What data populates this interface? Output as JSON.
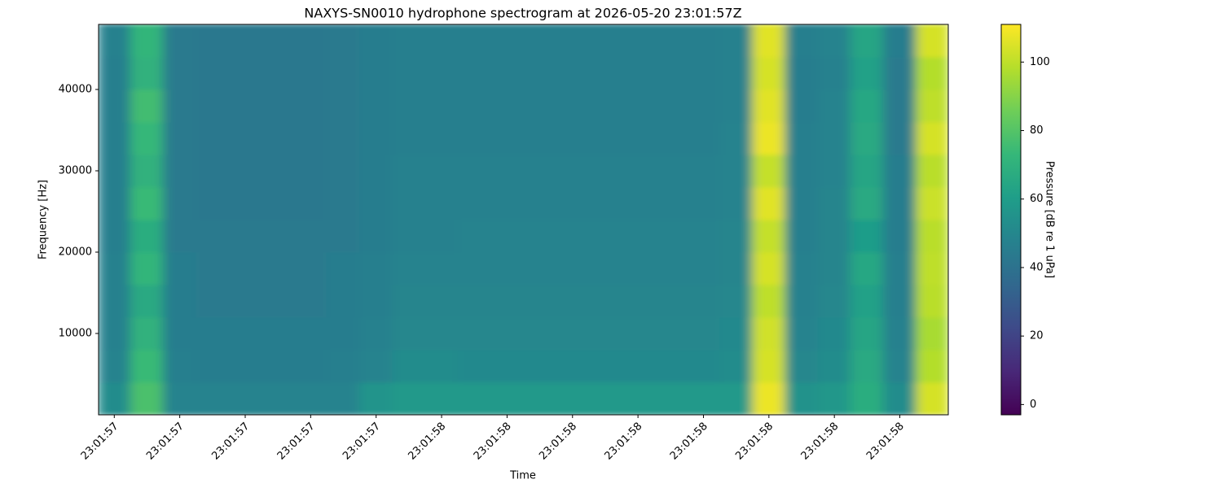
{
  "chart_data": {
    "type": "heatmap",
    "title": "NAXYS-SN0010 hydrophone spectrogram at 2026-05-20 23:01:57Z",
    "xlabel": "Time",
    "ylabel": "Frequency [Hz]",
    "colormap": "viridis",
    "x": [
      57.5,
      57.55,
      57.6,
      57.65,
      57.7,
      57.75,
      57.8,
      57.85,
      57.9,
      57.95,
      58.0,
      58.05,
      58.1,
      58.15,
      58.2,
      58.25,
      58.3,
      58.35,
      58.4,
      58.45,
      58.5,
      58.55,
      58.6,
      58.65,
      58.7,
      58.75
    ],
    "y": [
      2000,
      6000,
      10000,
      14000,
      18000,
      22000,
      26000,
      30000,
      34000,
      38000,
      42000,
      46000
    ],
    "z": [
      [
        52,
        78,
        48,
        48,
        48,
        48,
        48,
        48,
        56,
        58,
        58,
        58,
        58,
        58,
        58,
        58,
        58,
        58,
        58,
        58,
        108,
        55,
        57,
        68,
        52,
        104
      ],
      [
        48,
        74,
        46,
        45,
        45,
        45,
        45,
        46,
        48,
        52,
        52,
        51,
        51,
        51,
        51,
        51,
        51,
        51,
        51,
        52,
        104,
        50,
        52,
        66,
        48,
        98
      ],
      [
        47,
        70,
        45,
        45,
        45,
        45,
        45,
        45,
        47,
        50,
        50,
        50,
        50,
        50,
        50,
        50,
        50,
        50,
        50,
        51,
        103,
        48,
        51,
        64,
        47,
        96
      ],
      [
        47,
        66,
        45,
        44,
        44,
        44,
        44,
        45,
        46,
        49,
        49,
        49,
        49,
        49,
        49,
        49,
        49,
        49,
        49,
        50,
        100,
        47,
        50,
        62,
        46,
        99
      ],
      [
        47,
        72,
        45,
        44,
        44,
        44,
        44,
        45,
        46,
        48,
        48,
        48,
        48,
        48,
        48,
        48,
        48,
        48,
        48,
        49,
        104,
        47,
        49,
        65,
        46,
        100
      ],
      [
        46,
        68,
        44,
        44,
        44,
        44,
        44,
        44,
        45,
        47,
        47,
        48,
        48,
        48,
        48,
        48,
        48,
        48,
        48,
        49,
        101,
        46,
        49,
        60,
        45,
        99
      ],
      [
        46,
        74,
        44,
        43,
        43,
        43,
        43,
        44,
        45,
        47,
        47,
        47,
        47,
        47,
        47,
        47,
        47,
        47,
        47,
        48,
        106,
        46,
        49,
        66,
        45,
        102
      ],
      [
        46,
        70,
        44,
        43,
        43,
        43,
        43,
        44,
        45,
        47,
        47,
        47,
        47,
        47,
        47,
        47,
        47,
        47,
        47,
        48,
        101,
        46,
        48,
        64,
        45,
        99
      ],
      [
        46,
        73,
        44,
        43,
        43,
        43,
        43,
        44,
        45,
        46,
        46,
        46,
        46,
        46,
        46,
        46,
        46,
        46,
        46,
        48,
        108,
        46,
        48,
        66,
        44,
        104
      ],
      [
        46,
        76,
        44,
        43,
        43,
        43,
        43,
        44,
        45,
        46,
        46,
        46,
        46,
        46,
        46,
        46,
        46,
        46,
        46,
        47,
        106,
        45,
        48,
        65,
        44,
        100
      ],
      [
        46,
        70,
        44,
        43,
        43,
        43,
        43,
        44,
        45,
        46,
        46,
        46,
        46,
        46,
        46,
        46,
        46,
        46,
        46,
        47,
        104,
        45,
        47,
        62,
        44,
        98
      ],
      [
        47,
        72,
        44,
        43,
        43,
        43,
        43,
        44,
        45,
        46,
        46,
        46,
        46,
        46,
        46,
        46,
        46,
        46,
        46,
        47,
        106,
        46,
        48,
        64,
        45,
        104
      ]
    ],
    "xlim": [
      57.476,
      58.774
    ],
    "ylim": [
      0,
      48000
    ],
    "xticks": [
      {
        "value": 57.5,
        "label": "23:01:57"
      },
      {
        "value": 57.6,
        "label": "23:01:57"
      },
      {
        "value": 57.7,
        "label": "23:01:57"
      },
      {
        "value": 57.8,
        "label": "23:01:57"
      },
      {
        "value": 57.9,
        "label": "23:01:57"
      },
      {
        "value": 58.0,
        "label": "23:01:58"
      },
      {
        "value": 58.1,
        "label": "23:01:58"
      },
      {
        "value": 58.2,
        "label": "23:01:58"
      },
      {
        "value": 58.3,
        "label": "23:01:58"
      },
      {
        "value": 58.4,
        "label": "23:01:58"
      },
      {
        "value": 58.5,
        "label": "23:01:58"
      },
      {
        "value": 58.6,
        "label": "23:01:58"
      },
      {
        "value": 58.7,
        "label": "23:01:58"
      }
    ],
    "yticks": [
      10000,
      20000,
      30000,
      40000
    ],
    "colorbar": {
      "label": "Pressure [dB re 1 uPa]",
      "lim": [
        -3,
        111
      ],
      "ticks": [
        0,
        20,
        40,
        60,
        80,
        100
      ]
    }
  }
}
